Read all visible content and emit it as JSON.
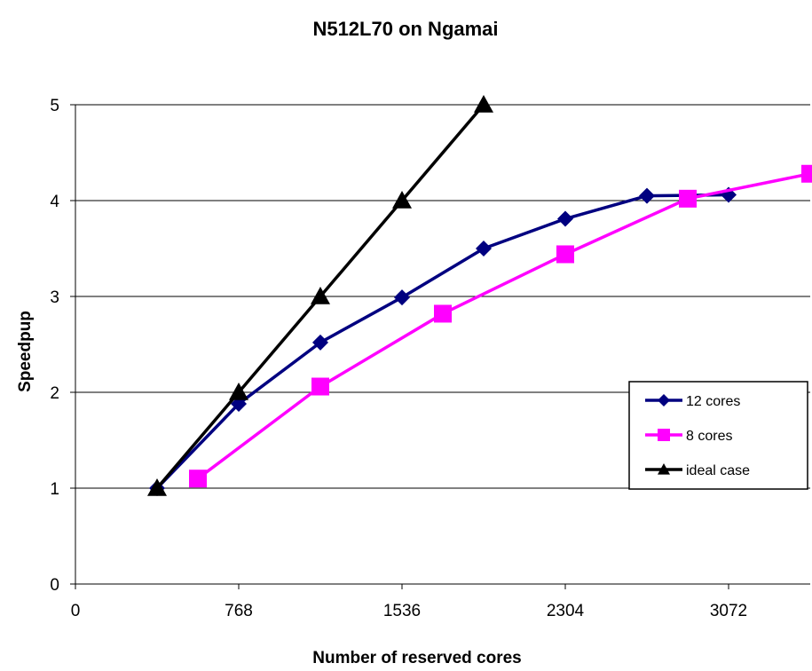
{
  "chart_data": {
    "type": "line",
    "title": "N512L70 on Ngamai",
    "xlabel": "Number of reserved cores",
    "ylabel": "Speedpup",
    "xlim": [
      0,
      3456
    ],
    "ylim": [
      0,
      5
    ],
    "xticks": [
      0,
      768,
      1536,
      2304,
      3072
    ],
    "yticks": [
      0,
      1,
      2,
      3,
      4,
      5
    ],
    "grid": "horizontal",
    "legend_position": "right",
    "series": [
      {
        "name": "12 cores",
        "color": "#000080",
        "marker": "diamond",
        "x": [
          384,
          768,
          1152,
          1536,
          1920,
          2304,
          2688,
          3072
        ],
        "y": [
          1.0,
          1.88,
          2.52,
          2.99,
          3.5,
          3.81,
          4.05,
          4.06
        ]
      },
      {
        "name": "8 cores",
        "color": "#FF00FF",
        "marker": "square",
        "x": [
          576,
          1152,
          1728,
          2304,
          2880,
          3456
        ],
        "y": [
          1.1,
          2.06,
          2.82,
          3.44,
          4.02,
          4.28
        ]
      },
      {
        "name": "ideal case",
        "color": "#000000",
        "marker": "triangle",
        "x": [
          384,
          768,
          1152,
          1536,
          1920
        ],
        "y": [
          1,
          2,
          3,
          4,
          5
        ]
      }
    ]
  }
}
